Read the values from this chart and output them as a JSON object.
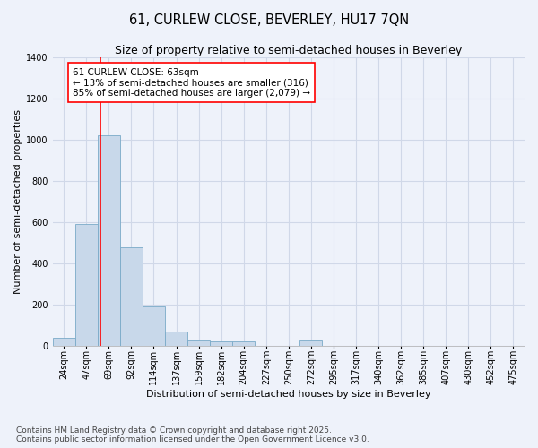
{
  "title1": "61, CURLEW CLOSE, BEVERLEY, HU17 7QN",
  "title2": "Size of property relative to semi-detached houses in Beverley",
  "xlabel": "Distribution of semi-detached houses by size in Beverley",
  "ylabel": "Number of semi-detached properties",
  "bar_labels": [
    "24sqm",
    "47sqm",
    "69sqm",
    "92sqm",
    "114sqm",
    "137sqm",
    "159sqm",
    "182sqm",
    "204sqm",
    "227sqm",
    "250sqm",
    "272sqm",
    "295sqm",
    "317sqm",
    "340sqm",
    "362sqm",
    "385sqm",
    "407sqm",
    "430sqm",
    "452sqm",
    "475sqm"
  ],
  "bar_values": [
    40,
    590,
    1020,
    480,
    190,
    70,
    25,
    20,
    20,
    0,
    0,
    25,
    0,
    0,
    0,
    0,
    0,
    0,
    0,
    0,
    0
  ],
  "bar_color": "#c8d8ea",
  "bar_edge_color": "#7aaac8",
  "ylim": [
    0,
    1400
  ],
  "yticks": [
    0,
    200,
    400,
    600,
    800,
    1000,
    1200,
    1400
  ],
  "red_line_x": 1.63,
  "annotation_text": "61 CURLEW CLOSE: 63sqm\n← 13% of semi-detached houses are smaller (316)\n85% of semi-detached houses are larger (2,079) →",
  "footer1": "Contains HM Land Registry data © Crown copyright and database right 2025.",
  "footer2": "Contains public sector information licensed under the Open Government Licence v3.0.",
  "bg_color": "#eef2fa",
  "grid_color": "#d0d8e8",
  "title1_fontsize": 10.5,
  "title2_fontsize": 9,
  "axis_label_fontsize": 8,
  "tick_fontsize": 7,
  "annotation_fontsize": 7.5,
  "footer_fontsize": 6.5
}
